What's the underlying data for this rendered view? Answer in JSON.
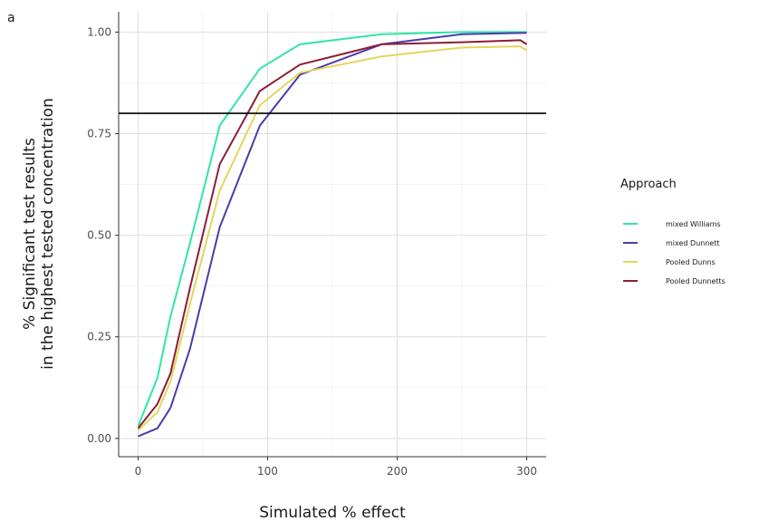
{
  "panel_tag": "a",
  "chart_data": {
    "type": "line",
    "xlabel": "Simulated % effect",
    "ylabel_lines": [
      "% Significant test results",
      "in the highest tested concentration"
    ],
    "xlim": [
      -15,
      315
    ],
    "ylim": [
      -0.045,
      1.05
    ],
    "x_ticks": [
      0,
      100,
      200,
      300
    ],
    "x_tick_labels": [
      "0",
      "100",
      "200",
      "300"
    ],
    "y_ticks": [
      0,
      0.25,
      0.5,
      0.75,
      1.0
    ],
    "y_tick_labels": [
      "0.00",
      "0.25",
      "0.50",
      "0.75",
      "1.00"
    ],
    "grid": true,
    "reference_line": {
      "y": 0.8,
      "color": "#000000"
    },
    "legend": {
      "title": "Approach",
      "placement": "right"
    },
    "series": [
      {
        "name": "mixed Williams",
        "color": "#2ee6a6",
        "x": [
          0,
          15,
          25,
          40,
          63,
          94,
          125,
          188,
          250,
          300
        ],
        "y": [
          0.03,
          0.15,
          0.3,
          0.48,
          0.77,
          0.91,
          0.97,
          0.995,
          1.0,
          1.0
        ]
      },
      {
        "name": "mixed Dunnett",
        "color": "#4b3ca8",
        "x": [
          0,
          15,
          25,
          40,
          63,
          94,
          125,
          188,
          250,
          300
        ],
        "y": [
          0.005,
          0.025,
          0.075,
          0.22,
          0.52,
          0.77,
          0.895,
          0.97,
          0.995,
          0.998
        ]
      },
      {
        "name": "Pooled Dunns",
        "color": "#e3d65c",
        "x": [
          0,
          15,
          25,
          40,
          63,
          94,
          125,
          188,
          250,
          295,
          300
        ],
        "y": [
          0.02,
          0.065,
          0.14,
          0.33,
          0.61,
          0.82,
          0.9,
          0.94,
          0.962,
          0.965,
          0.955
        ]
      },
      {
        "name": "Pooled Dunnetts",
        "color": "#8c1d36",
        "x": [
          0,
          15,
          25,
          40,
          63,
          94,
          125,
          188,
          250,
          295,
          300
        ],
        "y": [
          0.025,
          0.085,
          0.16,
          0.37,
          0.675,
          0.855,
          0.92,
          0.97,
          0.975,
          0.98,
          0.97
        ]
      }
    ]
  }
}
